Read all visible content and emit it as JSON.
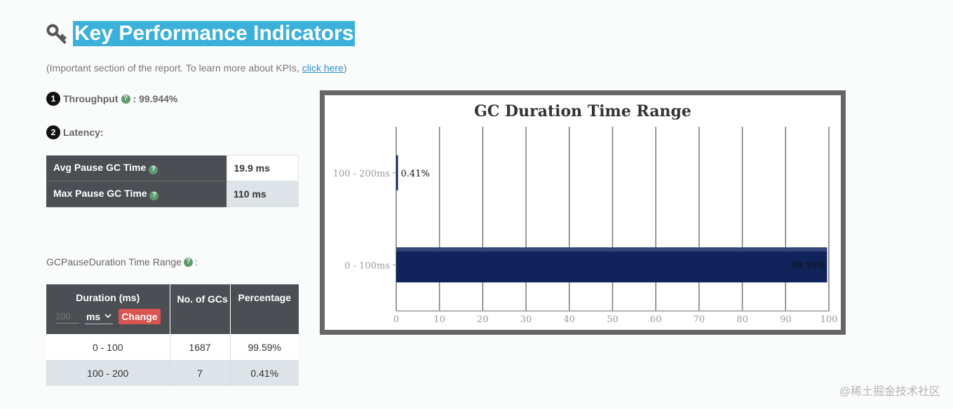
{
  "header": {
    "title": "Key Performance Indicators",
    "subtitle_prefix": "(Important section of the report. To learn more about KPIs, ",
    "subtitle_link": "click here",
    "subtitle_suffix": ")"
  },
  "throughput": {
    "number": "1",
    "label": "Throughput",
    "value": " : 99.944%"
  },
  "latency": {
    "number": "2",
    "label": "Latency:",
    "rows": [
      {
        "label": "Avg Pause GC Time",
        "value": "19.9 ms"
      },
      {
        "label": "Max Pause GC Time",
        "value": "110 ms"
      }
    ]
  },
  "range_section": {
    "label": "GCPauseDuration Time Range",
    "label_suffix": ":",
    "headers": {
      "duration": "Duration (ms)",
      "count": "No. of GCs",
      "percentage": "Percentage"
    },
    "input_placeholder": "100",
    "unit": "ms",
    "change_label": "Change",
    "rows": [
      {
        "range": "0 - 100",
        "count": "1687",
        "percentage": "99.59%"
      },
      {
        "range": "100 - 200",
        "count": "7",
        "percentage": "0.41%"
      }
    ]
  },
  "chart_data": {
    "type": "bar",
    "orientation": "horizontal",
    "title": "GC Duration Time Range",
    "categories": [
      "100 - 200ms",
      "0 - 100ms"
    ],
    "values": [
      0.41,
      99.59
    ],
    "data_labels": [
      "0.41%",
      "99.59%"
    ],
    "xlim": [
      0,
      100
    ],
    "x_ticks": [
      0,
      10,
      20,
      30,
      40,
      50,
      60,
      70,
      80,
      90,
      100
    ],
    "grid": true,
    "bar_color": "#10235a"
  },
  "watermark": "@稀土掘金技术社区"
}
